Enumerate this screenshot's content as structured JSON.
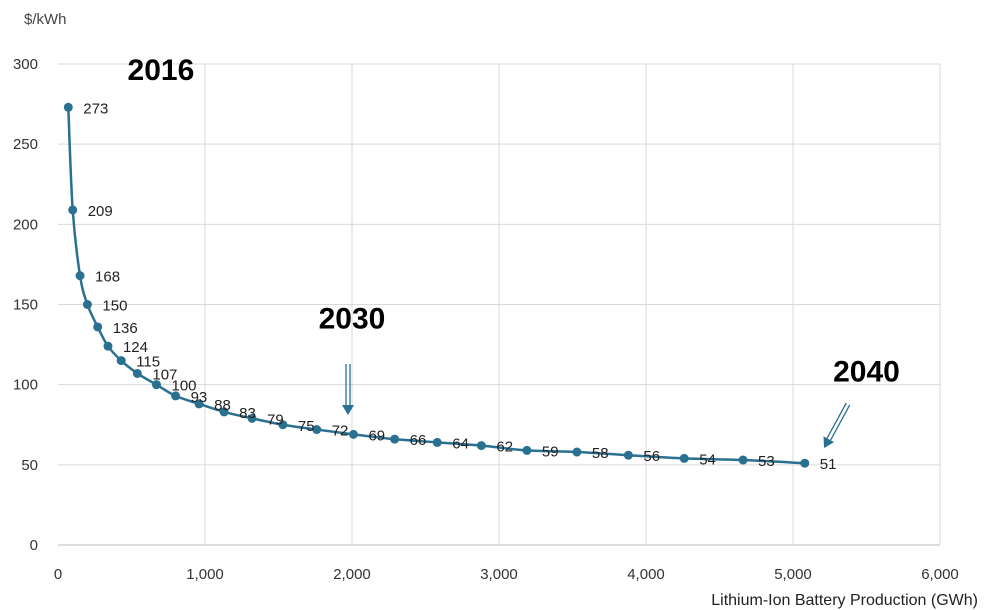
{
  "chart_data": {
    "type": "line",
    "ylabel": "$/kWh",
    "xlabel": "Lithium-Ion Battery Production (GWh)",
    "xlim": [
      0,
      6000
    ],
    "ylim": [
      0,
      300
    ],
    "x_ticks": [
      "0",
      "1,000",
      "2,000",
      "3,000",
      "4,000",
      "5,000",
      "6,000"
    ],
    "y_ticks": [
      "0",
      "50",
      "100",
      "150",
      "200",
      "250",
      "300"
    ],
    "grid": true,
    "line_color": "#2a7090",
    "points": [
      {
        "x": 70,
        "y": 273,
        "label": "273"
      },
      {
        "x": 100,
        "y": 209,
        "label": "209"
      },
      {
        "x": 150,
        "y": 168,
        "label": "168"
      },
      {
        "x": 200,
        "y": 150,
        "label": "150"
      },
      {
        "x": 270,
        "y": 136,
        "label": "136"
      },
      {
        "x": 340,
        "y": 124,
        "label": "124"
      },
      {
        "x": 430,
        "y": 115,
        "label": "115"
      },
      {
        "x": 540,
        "y": 107,
        "label": "107"
      },
      {
        "x": 670,
        "y": 100,
        "label": "100"
      },
      {
        "x": 800,
        "y": 93,
        "label": "93"
      },
      {
        "x": 960,
        "y": 88,
        "label": "88"
      },
      {
        "x": 1130,
        "y": 83,
        "label": "83"
      },
      {
        "x": 1320,
        "y": 79,
        "label": "79"
      },
      {
        "x": 1530,
        "y": 75,
        "label": "75"
      },
      {
        "x": 1760,
        "y": 72,
        "label": "72"
      },
      {
        "x": 2010,
        "y": 69,
        "label": "69"
      },
      {
        "x": 2290,
        "y": 66,
        "label": "66"
      },
      {
        "x": 2580,
        "y": 64,
        "label": "64"
      },
      {
        "x": 2880,
        "y": 62,
        "label": "62"
      },
      {
        "x": 3190,
        "y": 59,
        "label": "59"
      },
      {
        "x": 3530,
        "y": 58,
        "label": "58"
      },
      {
        "x": 3880,
        "y": 56,
        "label": "56"
      },
      {
        "x": 4260,
        "y": 54,
        "label": "54"
      },
      {
        "x": 4660,
        "y": 53,
        "label": "53"
      },
      {
        "x": 5080,
        "y": 51,
        "label": "51"
      }
    ],
    "annotations": [
      {
        "text": "2016",
        "x": 700,
        "y": 290
      },
      {
        "text": "2030",
        "x": 2000,
        "y": 135
      },
      {
        "text": "2040",
        "x": 5500,
        "y": 102
      }
    ]
  }
}
